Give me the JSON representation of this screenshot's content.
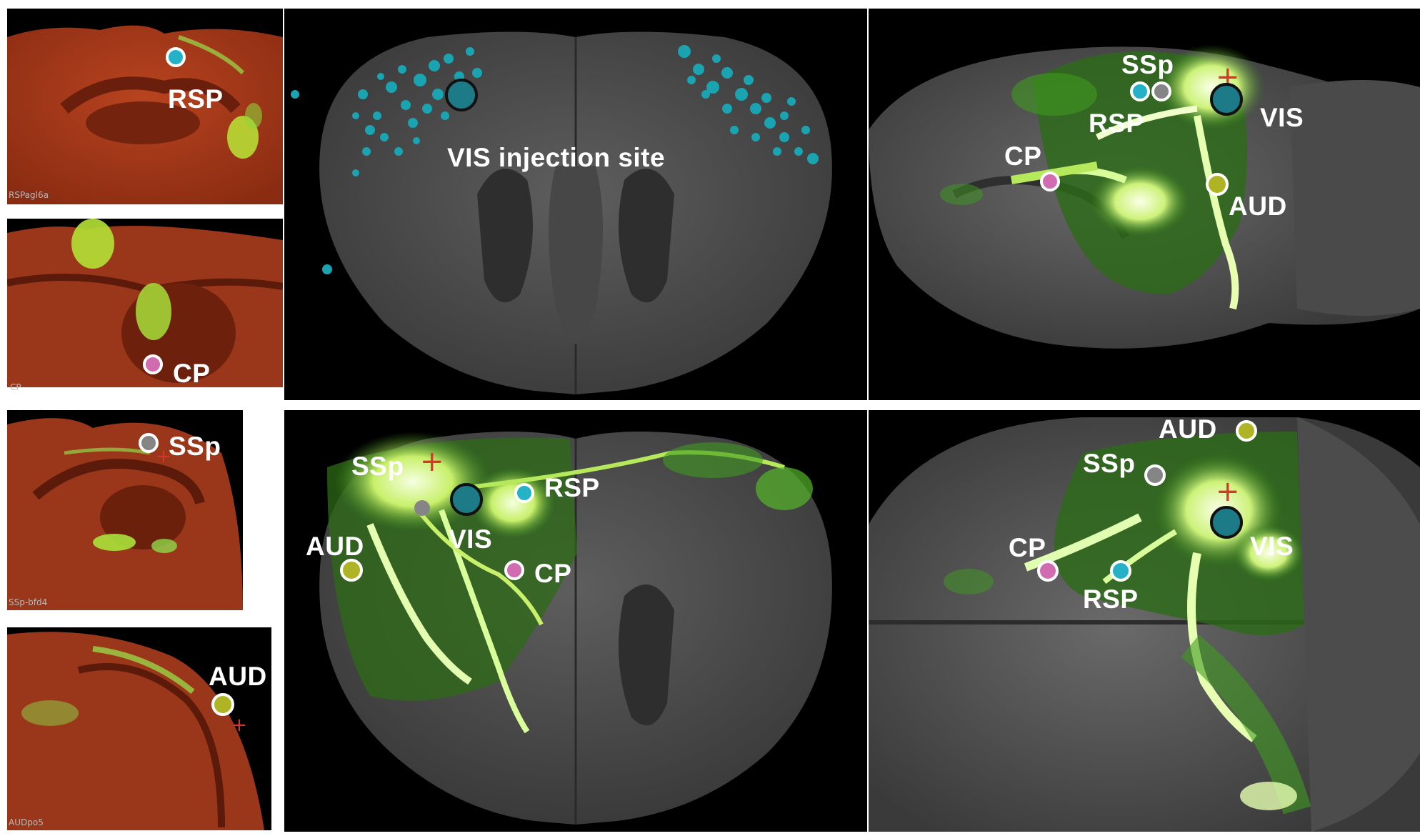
{
  "colors": {
    "rsp": "#25b2c6",
    "cp": "#d26cb1",
    "ssp": "#858585",
    "aud": "#aeb424",
    "vis": "#1c7b86",
    "cross": "#d8362a",
    "fluor": "#8fe23a",
    "section_bg": "#a0381a"
  },
  "left_sections": [
    {
      "tag": "RSPagl6a",
      "region": "RSP"
    },
    {
      "tag": "CP",
      "region": "CP"
    },
    {
      "tag": "SSp-bfd4",
      "region": "SSp"
    },
    {
      "tag": "AUDpo5",
      "region": "AUD"
    }
  ],
  "coronal_injection": {
    "caption": "VIS injection site"
  },
  "coronal_projection": {
    "labels": [
      "SSp",
      "RSP",
      "AUD",
      "VIS",
      "CP"
    ]
  },
  "sagittal_view": {
    "labels": [
      "SSp",
      "RSP",
      "VIS",
      "CP",
      "AUD"
    ]
  },
  "dorsal_view": {
    "labels": [
      "AUD",
      "SSp",
      "VIS",
      "CP",
      "RSP"
    ]
  },
  "icons": [
    "injection-site-marker",
    "target-marker",
    "crosshair-icon"
  ]
}
